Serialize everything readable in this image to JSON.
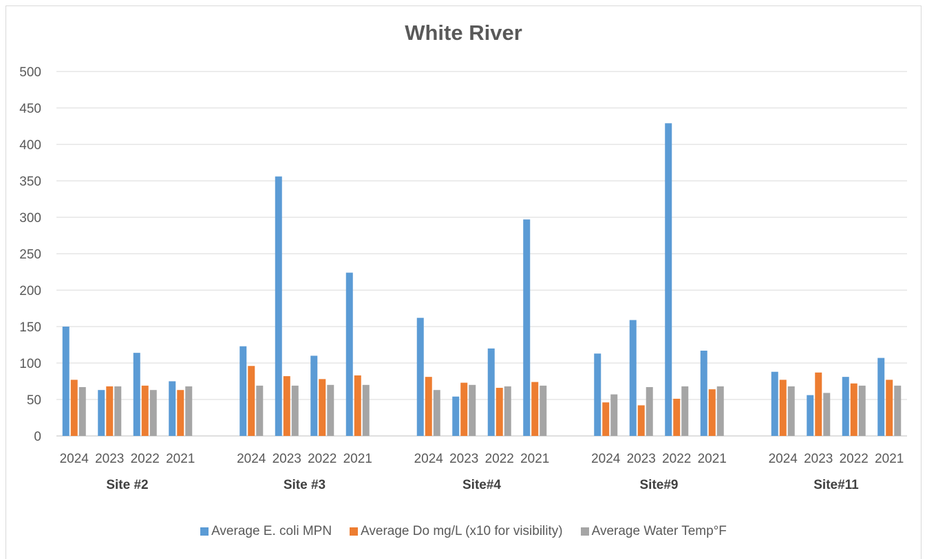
{
  "chart_data": {
    "type": "bar",
    "title": "White River",
    "xlabel": "",
    "ylabel": "",
    "ylim": [
      0,
      500
    ],
    "yticks": [
      0,
      50,
      100,
      150,
      200,
      250,
      300,
      350,
      400,
      450,
      500
    ],
    "grid": true,
    "legend_position": "bottom",
    "groups": [
      {
        "name": "Site #2",
        "categories": [
          "2024",
          "2023",
          "2022",
          "2021"
        ]
      },
      {
        "name": "Site #3",
        "categories": [
          "2024",
          "2023",
          "2022",
          "2021"
        ]
      },
      {
        "name": "Site#4",
        "categories": [
          "2024",
          "2023",
          "2022",
          "2021"
        ]
      },
      {
        "name": "Site#9",
        "categories": [
          "2024",
          "2023",
          "2022",
          "2021"
        ]
      },
      {
        "name": "Site#11",
        "categories": [
          "2024",
          "2023",
          "2022",
          "2021"
        ]
      }
    ],
    "series": [
      {
        "name": "Average E. coli MPN",
        "color": "#5b9bd5",
        "values": [
          150,
          63,
          114,
          75,
          123,
          356,
          110,
          224,
          162,
          54,
          120,
          297,
          113,
          159,
          429,
          117,
          88,
          56,
          81,
          107
        ]
      },
      {
        "name": "Average Do mg/L (x10 for visibility)",
        "color": "#ed7d31",
        "values": [
          77,
          68,
          69,
          63,
          96,
          82,
          78,
          83,
          81,
          73,
          66,
          74,
          46,
          42,
          51,
          64,
          77,
          87,
          72,
          77
        ]
      },
      {
        "name": "Average Water Temp°F",
        "color": "#a5a5a5",
        "values": [
          67,
          68,
          63,
          68,
          69,
          69,
          70,
          70,
          63,
          70,
          68,
          69,
          57,
          67,
          68,
          68,
          68,
          59,
          69,
          69
        ]
      }
    ]
  }
}
